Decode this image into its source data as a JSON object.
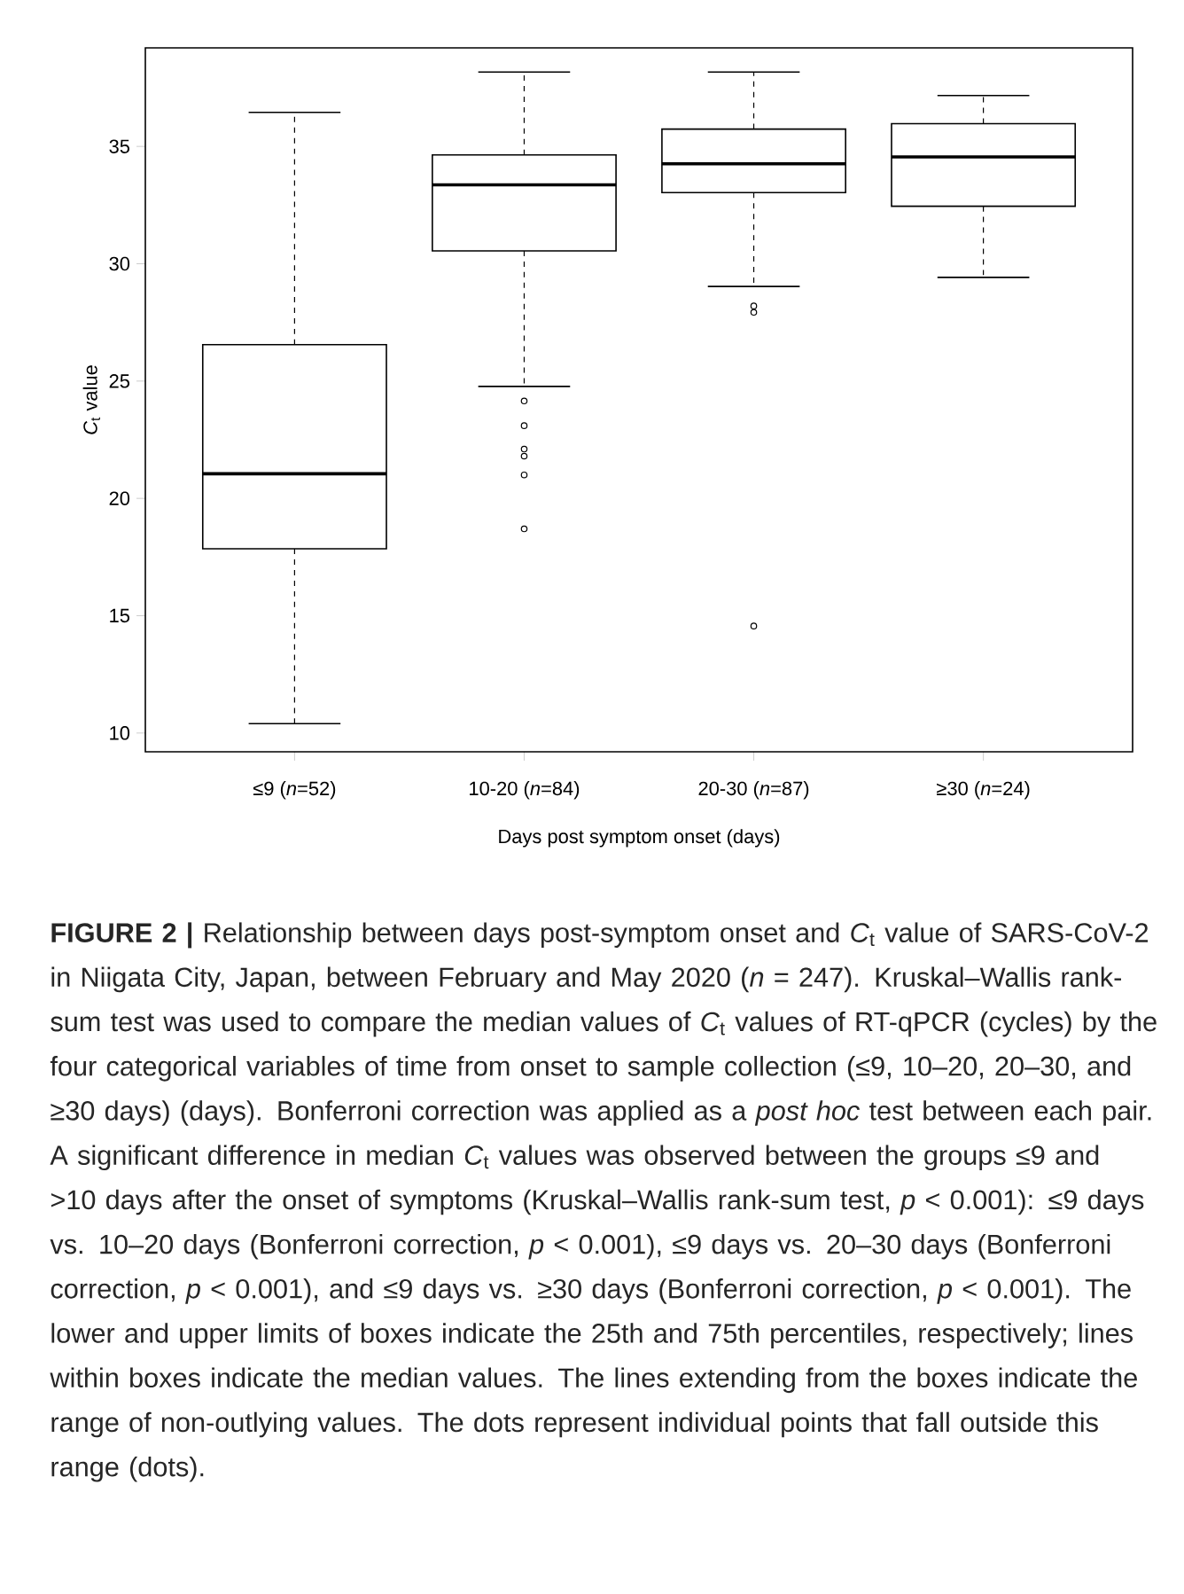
{
  "chart_data": {
    "type": "box",
    "xlabel": "Days post symptom onset (days)",
    "ylabel": "*C*$_{t}$ value",
    "categories": [
      "≤9 (*n*=52)",
      "10-20 (*n*=84)",
      "20-30 (*n*=87)",
      "≥30 (*n*=24)"
    ],
    "boxes": [
      {
        "low": 10.4,
        "q1": 17.85,
        "median": 21.05,
        "q3": 26.55,
        "high": 36.45
      },
      {
        "low": 24.77,
        "q1": 30.55,
        "median": 33.36,
        "q3": 34.64,
        "high": 38.17,
        "outliers": [
          24.15,
          23.1,
          22.1,
          21.8,
          21.0,
          18.7
        ]
      },
      {
        "low": 29.03,
        "q1": 33.03,
        "median": 34.26,
        "q3": 35.74,
        "high": 38.17,
        "outliers": [
          28.2,
          27.93,
          14.56
        ]
      },
      {
        "low": 29.42,
        "q1": 32.45,
        "median": 34.55,
        "q3": 35.97,
        "high": 37.17
      }
    ],
    "ylim": [
      9.2,
      39.2
    ],
    "yticks": [
      10,
      15,
      20,
      25,
      30,
      35
    ],
    "annotations": [
      "**FIGURE 2 |** Relationship between days post-symptom onset and *C*$_{t}$ value of SARS-CoV-2 in Niigata City, Japan, between February and May 2020 (*n* = 247). Kruskal–Wallis rank-sum test was used to compare the median values of *C*$_{t}$ values of RT-qPCR (cycles) by the four categorical variables of time from onset to sample collection (≤9, 10–20, 20–30, and ≥30 days) (days). Bonferroni correction was applied as a *post hoc* test between each pair. A significant difference in median *C*$_{t}$ values was observed between the groups ≤9 and >10 days after the onset of symptoms (Kruskal–Wallis rank-sum test, *p* < 0.001): ≤9 days vs. 10–20 days (Bonferroni correction, *p* < 0.001), ≤9 days vs. 20–30 days (Bonferroni correction, *p* < 0.001), and ≤9 days vs. ≥30 days (Bonferroni correction, *p* < 0.001). The lower and upper limits of boxes indicate the 25th and 75th percentiles, respectively; lines within boxes indicate the median values. The lines extending from the boxes indicate the range of non-outlying values. The dots represent individual points that fall outside this range (dots)."
    ]
  }
}
